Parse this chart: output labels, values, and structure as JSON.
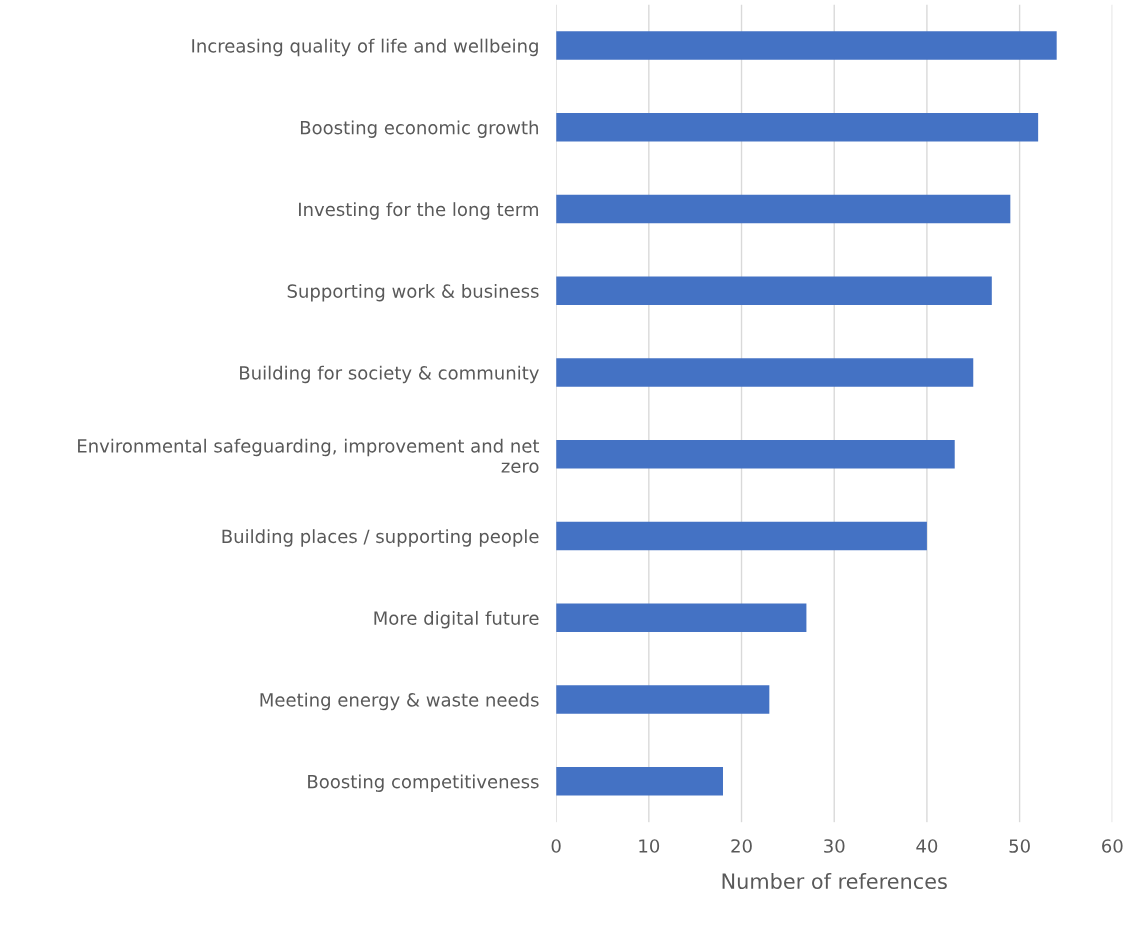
{
  "chart_data": {
    "type": "bar",
    "orientation": "horizontal",
    "xlabel": "Number of references",
    "categories": [
      "Increasing quality of life and wellbeing",
      "Boosting economic growth",
      "Investing for the long term",
      "Supporting work & business",
      "Building for society & community",
      "Environmental safeguarding, improvement and net\nzero",
      "Building places / supporting people",
      "More digital future",
      "Meeting energy & waste needs",
      "Boosting competitiveness"
    ],
    "values": [
      54,
      52,
      49,
      47,
      45,
      43,
      40,
      27,
      23,
      18
    ],
    "color": "#4472c4",
    "xlim": [
      0,
      60
    ],
    "xticks": [
      0,
      10,
      20,
      30,
      40,
      50,
      60
    ],
    "grid": "x"
  }
}
